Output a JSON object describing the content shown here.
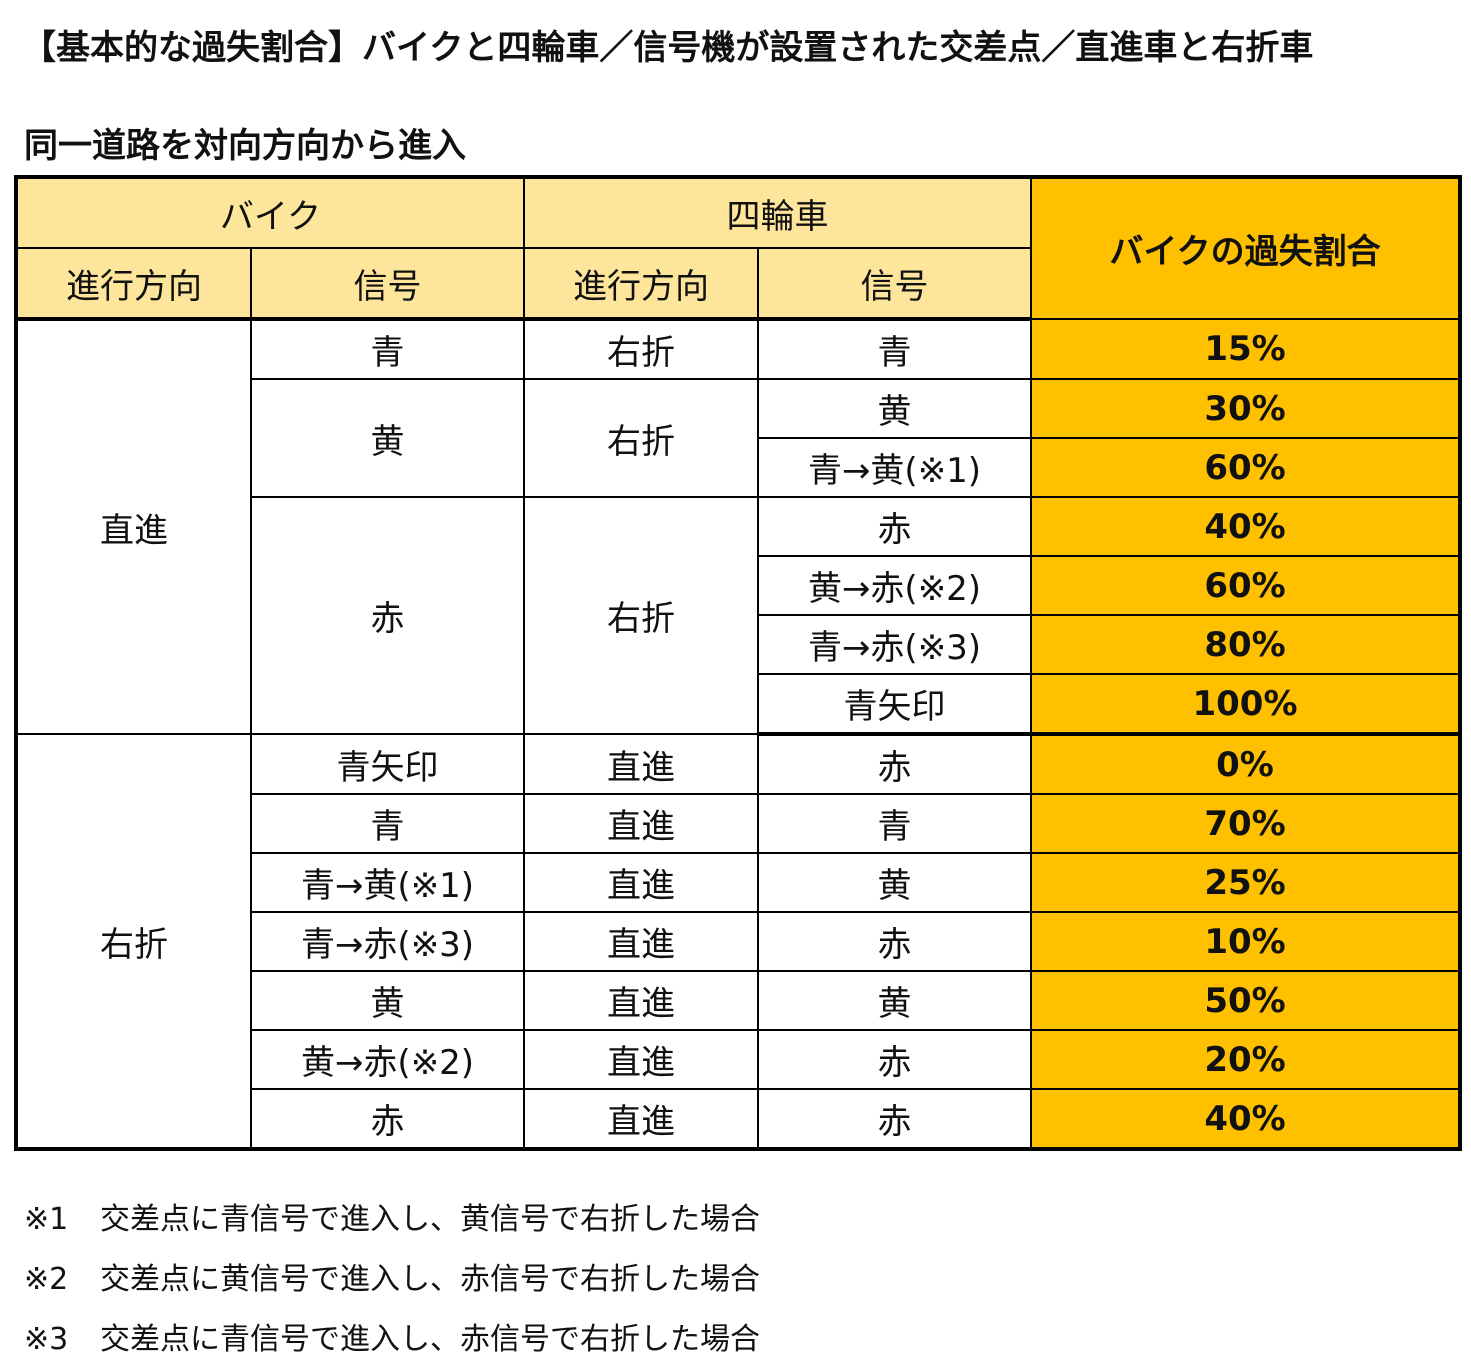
{
  "title": "【基本的な過失割合】バイクと四輪車／信号機が設置された交差点／直進車と右折車",
  "subtitle": "同一道路を対向方向から進入",
  "table": {
    "header": {
      "bike": "バイク",
      "car": "四輪車",
      "direction": "進行方向",
      "signal": "信号",
      "ratio": "バイクの過失割合"
    },
    "groups": {
      "straight": "直進",
      "right": "右折"
    },
    "rows": [
      {
        "bike_signal": "青",
        "car_dir": "右折",
        "car_signal": "青",
        "ratio": "15%"
      },
      {
        "bike_signal": "黄",
        "car_dir": "右折",
        "car_signal": "黄",
        "ratio": "30%"
      },
      {
        "car_signal": "青→黄(※1)",
        "ratio": "60%"
      },
      {
        "bike_signal": "赤",
        "car_dir": "右折",
        "car_signal": "赤",
        "ratio": "40%"
      },
      {
        "car_signal": "黄→赤(※2)",
        "ratio": "60%"
      },
      {
        "car_signal": "青→赤(※3)",
        "ratio": "80%"
      },
      {
        "car_signal": "青矢印",
        "ratio": "100%"
      },
      {
        "bike_signal": "青矢印",
        "car_dir": "直進",
        "car_signal": "赤",
        "ratio": "0%"
      },
      {
        "bike_signal": "青",
        "car_dir": "直進",
        "car_signal": "青",
        "ratio": "70%"
      },
      {
        "bike_signal": "青→黄(※1)",
        "car_dir": "直進",
        "car_signal": "黄",
        "ratio": "25%"
      },
      {
        "bike_signal": "青→赤(※3)",
        "car_dir": "直進",
        "car_signal": "赤",
        "ratio": "10%"
      },
      {
        "bike_signal": "黄",
        "car_dir": "直進",
        "car_signal": "黄",
        "ratio": "50%"
      },
      {
        "bike_signal": "黄→赤(※2)",
        "car_dir": "直進",
        "car_signal": "赤",
        "ratio": "20%"
      },
      {
        "bike_signal": "赤",
        "car_dir": "直進",
        "car_signal": "赤",
        "ratio": "40%"
      }
    ]
  },
  "notes": [
    {
      "mark": "※1",
      "text": "交差点に青信号で進入し、黄信号で右折した場合"
    },
    {
      "mark": "※2",
      "text": "交差点に黄信号で進入し、赤信号で右折した場合"
    },
    {
      "mark": "※3",
      "text": "交差点に青信号で進入し、赤信号で右折した場合"
    }
  ],
  "colors": {
    "header_bg": "#fde69b",
    "ratio_bg": "#ffc000",
    "border": "#000000"
  }
}
